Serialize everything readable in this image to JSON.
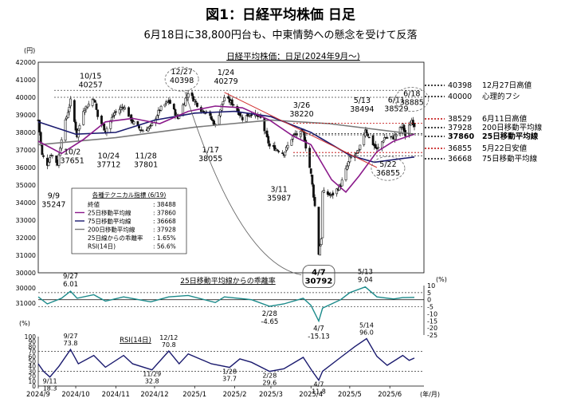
{
  "header": {
    "title": "図1：日経平均株価 日足",
    "subtitle": "6月18日に38,800円台も、中東情勢への懸念を受けて反落"
  },
  "chart_data": [
    {
      "type": "candlestick",
      "title": "日経平均株価：日足(2024年9月～)",
      "y_unit": "(円)",
      "ylim": [
        30000,
        42000
      ],
      "yticks": [
        "42000",
        "41000",
        "40000",
        "39000",
        "38000",
        "37000",
        "36000",
        "35000",
        "34000",
        "33000",
        "32000",
        "31000",
        "30000"
      ],
      "series": [
        {
          "name": "25日移動平均線",
          "color": "#8b1a8b",
          "last": 37860
        },
        {
          "name": "75日移動平均線",
          "color": "#1a1a6e",
          "last": 36668
        },
        {
          "name": "200日移動平均線",
          "color": "#7a7a7a",
          "last": 37928
        }
      ],
      "close_path": [
        {
          "d": "2024-09-02",
          "v": 38700
        },
        {
          "d": "2024-09-05",
          "v": 36700
        },
        {
          "d": "2024-09-09",
          "v": 36200
        },
        {
          "d": "2024-09-12",
          "v": 36800
        },
        {
          "d": "2024-09-17",
          "v": 36200
        },
        {
          "d": "2024-09-20",
          "v": 37700
        },
        {
          "d": "2024-09-27",
          "v": 39800
        },
        {
          "d": "2024-10-02",
          "v": 37800
        },
        {
          "d": "2024-10-07",
          "v": 39300
        },
        {
          "d": "2024-10-11",
          "v": 39600
        },
        {
          "d": "2024-10-15",
          "v": 40000
        },
        {
          "d": "2024-10-18",
          "v": 38900
        },
        {
          "d": "2024-10-24",
          "v": 38100
        },
        {
          "d": "2024-10-31",
          "v": 39100
        },
        {
          "d": "2024-11-07",
          "v": 39500
        },
        {
          "d": "2024-11-14",
          "v": 38600
        },
        {
          "d": "2024-11-21",
          "v": 38100
        },
        {
          "d": "2024-11-28",
          "v": 38300
        },
        {
          "d": "2024-12-05",
          "v": 39300
        },
        {
          "d": "2024-12-12",
          "v": 39800
        },
        {
          "d": "2024-12-19",
          "v": 38800
        },
        {
          "d": "2024-12-27",
          "v": 40300
        },
        {
          "d": "2025-01-06",
          "v": 39300
        },
        {
          "d": "2025-01-10",
          "v": 39200
        },
        {
          "d": "2025-01-17",
          "v": 38400
        },
        {
          "d": "2025-01-24",
          "v": 40000
        },
        {
          "d": "2025-01-31",
          "v": 39600
        },
        {
          "d": "2025-02-07",
          "v": 38800
        },
        {
          "d": "2025-02-14",
          "v": 39100
        },
        {
          "d": "2025-02-21",
          "v": 38800
        },
        {
          "d": "2025-02-28",
          "v": 37200
        },
        {
          "d": "2025-03-07",
          "v": 37000
        },
        {
          "d": "2025-03-11",
          "v": 36800
        },
        {
          "d": "2025-03-18",
          "v": 37800
        },
        {
          "d": "2025-03-26",
          "v": 38000
        },
        {
          "d": "2025-04-01",
          "v": 35600
        },
        {
          "d": "2025-04-04",
          "v": 33800
        },
        {
          "d": "2025-04-07",
          "v": 31100
        },
        {
          "d": "2025-04-09",
          "v": 32000
        },
        {
          "d": "2025-04-10",
          "v": 34600
        },
        {
          "d": "2025-04-17",
          "v": 34400
        },
        {
          "d": "2025-04-24",
          "v": 35000
        },
        {
          "d": "2025-05-01",
          "v": 36500
        },
        {
          "d": "2025-05-08",
          "v": 36900
        },
        {
          "d": "2025-05-13",
          "v": 38200
        },
        {
          "d": "2025-05-16",
          "v": 37700
        },
        {
          "d": "2025-05-22",
          "v": 37000
        },
        {
          "d": "2025-05-28",
          "v": 37700
        },
        {
          "d": "2025-06-04",
          "v": 37700
        },
        {
          "d": "2025-06-11",
          "v": 38400
        },
        {
          "d": "2025-06-13",
          "v": 37800
        },
        {
          "d": "2025-06-18",
          "v": 38700
        },
        {
          "d": "2025-06-20",
          "v": 38400
        }
      ],
      "ma25_path": [
        {
          "d": "2024-09-02",
          "v": 37500
        },
        {
          "d": "2024-09-20",
          "v": 36800
        },
        {
          "d": "2024-10-07",
          "v": 37600
        },
        {
          "d": "2024-10-24",
          "v": 38600
        },
        {
          "d": "2024-11-14",
          "v": 38800
        },
        {
          "d": "2024-12-05",
          "v": 38500
        },
        {
          "d": "2024-12-27",
          "v": 39200
        },
        {
          "d": "2025-01-17",
          "v": 39500
        },
        {
          "d": "2025-02-07",
          "v": 39400
        },
        {
          "d": "2025-02-28",
          "v": 38700
        },
        {
          "d": "2025-03-18",
          "v": 37800
        },
        {
          "d": "2025-04-01",
          "v": 37300
        },
        {
          "d": "2025-04-17",
          "v": 35300
        },
        {
          "d": "2025-04-28",
          "v": 34600
        },
        {
          "d": "2025-05-08",
          "v": 35500
        },
        {
          "d": "2025-05-22",
          "v": 36900
        },
        {
          "d": "2025-06-04",
          "v": 37500
        },
        {
          "d": "2025-06-20",
          "v": 37900
        }
      ],
      "ma75_path": [
        {
          "d": "2024-09-02",
          "v": 38600
        },
        {
          "d": "2024-10-01",
          "v": 37900
        },
        {
          "d": "2024-11-01",
          "v": 38000
        },
        {
          "d": "2024-12-01",
          "v": 38700
        },
        {
          "d": "2025-01-01",
          "v": 39100
        },
        {
          "d": "2025-02-01",
          "v": 39200
        },
        {
          "d": "2025-03-01",
          "v": 38900
        },
        {
          "d": "2025-04-01",
          "v": 38000
        },
        {
          "d": "2025-05-01",
          "v": 36700
        },
        {
          "d": "2025-05-20",
          "v": 36300
        },
        {
          "d": "2025-06-20",
          "v": 36600
        }
      ],
      "ma200_path": [
        {
          "d": "2024-09-02",
          "v": 37300
        },
        {
          "d": "2024-11-01",
          "v": 37700
        },
        {
          "d": "2025-01-01",
          "v": 38300
        },
        {
          "d": "2025-03-01",
          "v": 38700
        },
        {
          "d": "2025-04-15",
          "v": 38500
        },
        {
          "d": "2025-06-20",
          "v": 37900
        }
      ],
      "reference_lines": [
        {
          "value": 40398,
          "label": "40398",
          "note": "12月27日高値",
          "style": "black"
        },
        {
          "value": 40000,
          "label": "40000",
          "note": "心理的フシ",
          "style": "black"
        },
        {
          "value": 38529,
          "label": "38529",
          "note": "6月11日高値",
          "style": "red"
        },
        {
          "value": 37928,
          "label": "37928",
          "note": "200日移動平均線",
          "style": "black"
        },
        {
          "value": 37860,
          "label": "37860",
          "note": "25日移動平均線",
          "style": "bold"
        },
        {
          "value": 36855,
          "label": "36855",
          "note": "5月22日安値",
          "style": "red"
        },
        {
          "value": 36668,
          "label": "36668",
          "note": "75日移動平均線",
          "style": "black"
        }
      ],
      "annotations": [
        {
          "d": "2024-09-09",
          "v": 35247,
          "line1": "9/9",
          "line2": "35247"
        },
        {
          "d": "2024-10-02",
          "v": 37651,
          "line1": "10/2",
          "line2": "37651"
        },
        {
          "d": "2024-10-15",
          "v": 40257,
          "line1": "10/15",
          "line2": "40257"
        },
        {
          "d": "2024-10-24",
          "v": 37712,
          "line1": "10/24",
          "line2": "37712"
        },
        {
          "d": "2024-11-28",
          "v": 37801,
          "line1": "11/28",
          "line2": "37801"
        },
        {
          "d": "2024-12-27",
          "v": 40398,
          "line1": "12/27",
          "line2": "40398"
        },
        {
          "d": "2025-01-17",
          "v": 38055,
          "line1": "1/17",
          "line2": "38055"
        },
        {
          "d": "2025-01-24",
          "v": 40279,
          "line1": "1/24",
          "line2": "40279"
        },
        {
          "d": "2025-03-11",
          "v": 35987,
          "line1": "3/11",
          "line2": "35987"
        },
        {
          "d": "2025-03-26",
          "v": 38220,
          "line1": "3/26",
          "line2": "38220"
        },
        {
          "d": "2025-04-07",
          "v": 30792,
          "line1": "4/7",
          "line2": "30792"
        },
        {
          "d": "2025-05-13",
          "v": 38494,
          "line1": "5/13",
          "line2": "38494"
        },
        {
          "d": "2025-05-22",
          "v": 36855,
          "line1": "5/22",
          "line2": "36855"
        },
        {
          "d": "2025-06-11",
          "v": 38529,
          "line1": "6/11",
          "line2": "38529"
        },
        {
          "d": "2025-06-18",
          "v": 38885,
          "line1": "6/18",
          "line2": "38885"
        }
      ],
      "legend": {
        "title": "各種テクニカル指標 (6/19)",
        "rows": [
          {
            "label": "終値",
            "value": ": 38488"
          },
          {
            "label": "25日移動平均線",
            "value": ": 37860"
          },
          {
            "label": "75日移動平均線",
            "value": ": 36668"
          },
          {
            "label": "200日移動平均線",
            "value": ": 37928"
          },
          {
            "label": "25日線からの乖離率",
            "value": ": 1.65%"
          },
          {
            "label": "RSI(14日)",
            "value": ": 56.6%"
          }
        ]
      }
    },
    {
      "type": "line",
      "title": "25日移動平均線からの乖離率",
      "y_unit": "(%)",
      "ylim": [
        -25,
        10
      ],
      "yticks": [
        "10",
        "5",
        "0",
        "-5",
        "-10",
        "-15",
        "-20",
        "-25"
      ],
      "reference_lines": [
        5,
        -5
      ],
      "path": [
        {
          "d": "2024-09-02",
          "v": 2
        },
        {
          "d": "2024-09-09",
          "v": -3
        },
        {
          "d": "2024-09-20",
          "v": 1
        },
        {
          "d": "2024-09-27",
          "v": 6.01
        },
        {
          "d": "2024-10-02",
          "v": 1
        },
        {
          "d": "2024-10-15",
          "v": 3.5
        },
        {
          "d": "2024-10-24",
          "v": -1
        },
        {
          "d": "2024-11-07",
          "v": 2
        },
        {
          "d": "2024-11-28",
          "v": -1.5
        },
        {
          "d": "2024-12-12",
          "v": 2
        },
        {
          "d": "2024-12-27",
          "v": 3
        },
        {
          "d": "2025-01-17",
          "v": -2
        },
        {
          "d": "2025-01-24",
          "v": 2
        },
        {
          "d": "2025-02-14",
          "v": 0
        },
        {
          "d": "2025-02-28",
          "v": -4.65
        },
        {
          "d": "2025-03-11",
          "v": -3
        },
        {
          "d": "2025-03-26",
          "v": 1
        },
        {
          "d": "2025-04-01",
          "v": -4
        },
        {
          "d": "2025-04-07",
          "v": -15.13
        },
        {
          "d": "2025-04-10",
          "v": -6
        },
        {
          "d": "2025-04-24",
          "v": 0
        },
        {
          "d": "2025-05-01",
          "v": 5
        },
        {
          "d": "2025-05-13",
          "v": 9.04
        },
        {
          "d": "2025-05-22",
          "v": 2
        },
        {
          "d": "2025-06-04",
          "v": 0.5
        },
        {
          "d": "2025-06-11",
          "v": 1.5
        },
        {
          "d": "2025-06-20",
          "v": 1.65
        }
      ],
      "annotations": [
        {
          "d": "2024-09-27",
          "v": 6.01,
          "line1": "9/27",
          "line2": "6.01",
          "pos": "above"
        },
        {
          "d": "2025-02-28",
          "v": -4.65,
          "line1": "2/28",
          "line2": "-4.65",
          "pos": "below"
        },
        {
          "d": "2025-04-07",
          "v": -15.13,
          "line1": "4/7",
          "line2": "-15.13",
          "pos": "below"
        },
        {
          "d": "2025-05-13",
          "v": 9.04,
          "line1": "5/13",
          "line2": "9.04",
          "pos": "above"
        }
      ]
    },
    {
      "type": "line",
      "title": "RSI(14日)",
      "y_unit": "(%)",
      "ylim": [
        0,
        100
      ],
      "yticks": [
        "100",
        "90",
        "80",
        "70",
        "60",
        "50",
        "40",
        "30",
        "20",
        "10",
        "0"
      ],
      "reference_lines": [
        70,
        30
      ],
      "path": [
        {
          "d": "2024-09-02",
          "v": 45
        },
        {
          "d": "2024-09-06",
          "v": 30
        },
        {
          "d": "2024-09-11",
          "v": 18.3
        },
        {
          "d": "2024-09-18",
          "v": 40
        },
        {
          "d": "2024-09-27",
          "v": 73.8
        },
        {
          "d": "2024-10-03",
          "v": 45
        },
        {
          "d": "2024-10-15",
          "v": 62
        },
        {
          "d": "2024-10-24",
          "v": 38
        },
        {
          "d": "2024-11-07",
          "v": 62
        },
        {
          "d": "2024-11-14",
          "v": 45
        },
        {
          "d": "2024-11-29",
          "v": 32.8
        },
        {
          "d": "2024-12-12",
          "v": 70.8
        },
        {
          "d": "2024-12-20",
          "v": 45
        },
        {
          "d": "2024-12-27",
          "v": 65
        },
        {
          "d": "2025-01-14",
          "v": 45
        },
        {
          "d": "2025-01-28",
          "v": 37.7
        },
        {
          "d": "2025-02-05",
          "v": 55
        },
        {
          "d": "2025-02-14",
          "v": 48
        },
        {
          "d": "2025-02-28",
          "v": 29.6
        },
        {
          "d": "2025-03-11",
          "v": 35
        },
        {
          "d": "2025-03-26",
          "v": 58
        },
        {
          "d": "2025-04-02",
          "v": 30
        },
        {
          "d": "2025-04-07",
          "v": 11.8
        },
        {
          "d": "2025-04-10",
          "v": 30
        },
        {
          "d": "2025-04-24",
          "v": 58
        },
        {
          "d": "2025-05-05",
          "v": 80
        },
        {
          "d": "2025-05-14",
          "v": 96.0
        },
        {
          "d": "2025-05-22",
          "v": 60
        },
        {
          "d": "2025-05-30",
          "v": 42
        },
        {
          "d": "2025-06-11",
          "v": 62
        },
        {
          "d": "2025-06-16",
          "v": 52
        },
        {
          "d": "2025-06-20",
          "v": 56.6
        }
      ],
      "annotations": [
        {
          "d": "2024-09-11",
          "v": 18.3,
          "line1": "9/11",
          "line2": "18.3",
          "pos": "below"
        },
        {
          "d": "2024-09-27",
          "v": 73.8,
          "line1": "9/27",
          "line2": "73.8",
          "pos": "above"
        },
        {
          "d": "2024-11-29",
          "v": 32.8,
          "line1": "11/29",
          "line2": "32.8",
          "pos": "below"
        },
        {
          "d": "2024-12-12",
          "v": 70.8,
          "line1": "12/12",
          "line2": "70.8",
          "pos": "above"
        },
        {
          "d": "2025-01-28",
          "v": 37.7,
          "line1": "1/28",
          "line2": "37.7",
          "pos": "below"
        },
        {
          "d": "2025-02-28",
          "v": 29.6,
          "line1": "2/28",
          "line2": "29.6",
          "pos": "below"
        },
        {
          "d": "2025-04-07",
          "v": 11.8,
          "line1": "4/7",
          "line2": "11.8",
          "pos": "below"
        },
        {
          "d": "2025-05-14",
          "v": 96.0,
          "line1": "5/14",
          "line2": "96.0",
          "pos": "above"
        }
      ],
      "x_labels": [
        "2024/9",
        "2024/10",
        "2024/11",
        "2024/12",
        "2025/1",
        "2025/2",
        "2025/3",
        "2025/4",
        "2025/5",
        "2025/6"
      ],
      "x_label_dates": [
        "2024-09-01",
        "2024-10-01",
        "2024-11-01",
        "2024-12-01",
        "2025-01-01",
        "2025-02-01",
        "2025-03-01",
        "2025-04-01",
        "2025-05-01",
        "2025-06-01"
      ],
      "x_unit": "(年/月)"
    }
  ],
  "colors": {
    "candle": "#111111",
    "ma25": "#8b1a8b",
    "ma75": "#1a1a6e",
    "ma200": "#7a7a7a",
    "trend": "#d23232",
    "red_line": "#c00000",
    "kairi": "#1a8a8a",
    "rsi": "#1a1a6e"
  }
}
